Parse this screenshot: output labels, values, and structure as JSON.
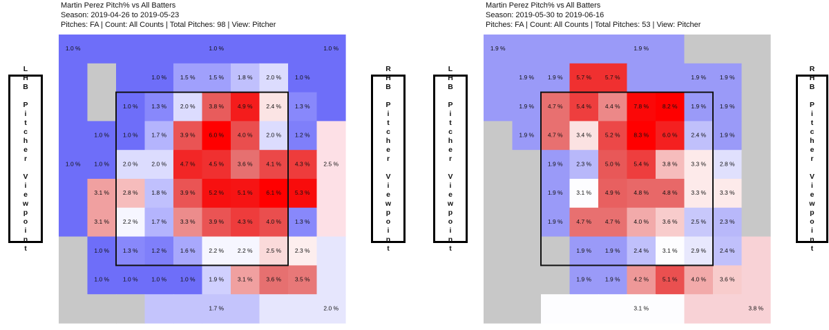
{
  "chart_data": [
    {
      "type": "heatmap",
      "title": "Martin Perez Pitch% vs All Batters",
      "subtitle": "Season: 2019-04-26 to 2019-05-23",
      "details": "Pitches: FA | Count: All Counts | Total Pitches: 98 | View: Pitcher",
      "left_label": "LHB Pitcher Viewpoint",
      "right_label": "RHB Pitcher Viewpoint",
      "values": [
        [
          1.0,
          null,
          null,
          null,
          null,
          1.0,
          null,
          null,
          null,
          1.0
        ],
        [
          null,
          null,
          null,
          1.0,
          1.5,
          1.5,
          1.8,
          2.0,
          1.0,
          null
        ],
        [
          null,
          null,
          1.0,
          1.3,
          2.0,
          3.8,
          4.9,
          2.4,
          1.3,
          null
        ],
        [
          null,
          1.0,
          1.0,
          1.7,
          3.9,
          6.0,
          4.0,
          2.0,
          1.2,
          null
        ],
        [
          1.0,
          1.0,
          2.0,
          2.0,
          4.7,
          4.5,
          3.6,
          4.1,
          4.3,
          2.5
        ],
        [
          null,
          3.1,
          2.8,
          1.8,
          3.9,
          5.2,
          5.1,
          6.1,
          5.3,
          null
        ],
        [
          null,
          3.1,
          2.2,
          1.7,
          3.3,
          3.9,
          4.3,
          4.0,
          1.3,
          null
        ],
        [
          null,
          1.0,
          1.3,
          1.2,
          1.6,
          2.2,
          2.2,
          2.5,
          2.3,
          null
        ],
        [
          null,
          1.0,
          1.0,
          1.0,
          1.0,
          1.9,
          3.1,
          3.6,
          3.5,
          null
        ],
        [
          null,
          null,
          null,
          null,
          null,
          1.7,
          null,
          null,
          null,
          2.0
        ]
      ],
      "value_labels": [
        [
          "1.0 %",
          null,
          null,
          null,
          null,
          "1.0 %",
          null,
          null,
          null,
          "1.0 %"
        ],
        [
          null,
          null,
          null,
          "1.0 %",
          "1.5 %",
          "1.5 %",
          "1.8 %",
          "2.0 %",
          "1.0 %",
          null
        ],
        [
          null,
          null,
          "1.0 %",
          "1.3 %",
          "2.0 %",
          "3.8 %",
          "4.9 %",
          "2.4 %",
          "1.3 %",
          null
        ],
        [
          null,
          "1.0 %",
          "1.0 %",
          "1.7 %",
          "3.9 %",
          "6.0 %",
          "4.0 %",
          "2.0 %",
          "1.2 %",
          null
        ],
        [
          "1.0 %",
          "1.0 %",
          "2.0 %",
          "2.0 %",
          "4.7 %",
          "4.5 %",
          "3.6 %",
          "4.1 %",
          "4.3 %",
          "2.5 %"
        ],
        [
          null,
          "3.1 %",
          "2.8 %",
          "1.8 %",
          "3.9 %",
          "5.2 %",
          "5.1 %",
          "6.1 %",
          "5.3 %",
          null
        ],
        [
          null,
          "3.1 %",
          "2.2 %",
          "1.7 %",
          "3.3 %",
          "3.9 %",
          "4.3 %",
          "4.0 %",
          "1.3 %",
          null
        ],
        [
          null,
          "1.0 %",
          "1.3 %",
          "1.2 %",
          "1.6 %",
          "2.2 %",
          "2.2 %",
          "2.5 %",
          "2.3 %",
          null
        ],
        [
          null,
          "1.0 %",
          "1.0 %",
          "1.0 %",
          "1.0 %",
          "1.9 %",
          "3.1 %",
          "3.6 %",
          "3.5 %",
          null
        ],
        [
          null,
          null,
          null,
          null,
          null,
          "1.7 %",
          null,
          null,
          null,
          "2.0 %"
        ]
      ],
      "colors": [
        [
          "#6e6ef9",
          "#6e6ef9",
          "#6e6ef9",
          "#6e6ef9",
          "#6e6ef9",
          "#6e6ef9",
          "#6e6ef9",
          "#6e6ef9",
          "#6e6ef9",
          "#6e6ef9"
        ],
        [
          "#6e6ef9",
          "#c8c8c8",
          "#6e6ef9",
          "#6e6ef9",
          "#a0a0fc",
          "#a0a0fc",
          "#c0c0fd",
          "#dcdcfe",
          "#6e6ef9",
          "#6e6ef9"
        ],
        [
          "#6e6ef9",
          "#c8c8c8",
          "#6e6ef9",
          "#8888fb",
          "#dcdcfe",
          "#e85c5c",
          "#f41c1c",
          "#fbe4e4",
          "#8888fb",
          "#6e6ef9"
        ],
        [
          "#6e6ef9",
          "#6e6ef9",
          "#6e6ef9",
          "#b4b4fd",
          "#ea5454",
          "#ff0000",
          "#ea4e4e",
          "#dcdcfe",
          "#7f7ffa",
          "#fde0e6"
        ],
        [
          "#6e6ef9",
          "#6e6ef9",
          "#dcdcfe",
          "#dcdcfe",
          "#f22626",
          "#f03030",
          "#e67070",
          "#eb4848",
          "#ee3c3c",
          "#fde0e6"
        ],
        [
          "#6e6ef9",
          "#f0a0a0",
          "#f6bcbc",
          "#c0c0fd",
          "#ea5454",
          "#f71010",
          "#f61414",
          "#ff0000",
          "#f80c0c",
          "#fde0e6"
        ],
        [
          "#6e6ef9",
          "#f0a0a0",
          "#f6f6ff",
          "#b4b4fd",
          "#ec8c8c",
          "#ea5454",
          "#ee3c3c",
          "#ea4e4e",
          "#8888fb",
          "#fde0e6"
        ],
        [
          "#c8c8c8",
          "#6e6ef9",
          "#8888fb",
          "#7f7ffa",
          "#a8a8fc",
          "#f6f6ff",
          "#f6f6ff",
          "#fadada",
          "#fdeeee",
          "#e6e6fd"
        ],
        [
          "#c8c8c8",
          "#6e6ef9",
          "#6e6ef9",
          "#6e6ef9",
          "#6e6ef9",
          "#d0d0fe",
          "#f0a0a0",
          "#e67070",
          "#e87878",
          "#e6e6fd"
        ],
        [
          "#c8c8c8",
          "#c8c8c8",
          "#c8c8c8",
          "#c4c4fc",
          "#c4c4fc",
          "#c4c4fc",
          "#c4c4fc",
          "#e6e6fd",
          "#e6e6fd",
          "#e6e6fd"
        ]
      ]
    },
    {
      "type": "heatmap",
      "title": "Martin Perez Pitch% vs All Batters",
      "subtitle": "Season: 2019-05-30 to 2019-06-16",
      "details": "Pitches: FA | Count: All Counts | Total Pitches: 53 | View: Pitcher",
      "left_label": "LHB Pitcher Viewpoint",
      "right_label": "RHB Pitcher Viewpoint",
      "values": [
        [
          1.9,
          null,
          null,
          null,
          null,
          1.9,
          null,
          null,
          null,
          null
        ],
        [
          null,
          1.9,
          1.9,
          5.7,
          5.7,
          null,
          null,
          1.9,
          1.9,
          null
        ],
        [
          null,
          1.9,
          4.7,
          5.4,
          4.4,
          7.8,
          8.2,
          1.9,
          1.9,
          null
        ],
        [
          null,
          1.9,
          4.7,
          3.4,
          5.2,
          8.3,
          6.0,
          2.4,
          1.9,
          null
        ],
        [
          null,
          null,
          1.9,
          2.3,
          5.0,
          5.4,
          3.8,
          3.3,
          2.8,
          null
        ],
        [
          null,
          null,
          1.9,
          3.1,
          4.9,
          4.8,
          4.8,
          3.3,
          3.3,
          null
        ],
        [
          null,
          null,
          1.9,
          4.7,
          4.7,
          4.0,
          3.6,
          2.5,
          2.3,
          null
        ],
        [
          null,
          null,
          null,
          1.9,
          1.9,
          2.4,
          3.1,
          2.9,
          2.4,
          null
        ],
        [
          null,
          null,
          null,
          1.9,
          1.9,
          4.2,
          5.1,
          4.0,
          3.6,
          null
        ],
        [
          null,
          null,
          null,
          null,
          null,
          3.1,
          null,
          null,
          null,
          3.8
        ]
      ],
      "value_labels": [
        [
          "1.9 %",
          null,
          null,
          null,
          null,
          "1.9 %",
          null,
          null,
          null,
          null
        ],
        [
          null,
          "1.9 %",
          "1.9 %",
          "5.7 %",
          "5.7 %",
          null,
          null,
          "1.9 %",
          "1.9 %",
          null
        ],
        [
          null,
          "1.9 %",
          "4.7 %",
          "5.4 %",
          "4.4 %",
          "7.8 %",
          "8.2 %",
          "1.9 %",
          "1.9 %",
          null
        ],
        [
          null,
          "1.9 %",
          "4.7 %",
          "3.4 %",
          "5.2 %",
          "8.3 %",
          "6.0 %",
          "2.4 %",
          "1.9 %",
          null
        ],
        [
          null,
          null,
          "1.9 %",
          "2.3 %",
          "5.0 %",
          "5.4 %",
          "3.8 %",
          "3.3 %",
          "2.8 %",
          null
        ],
        [
          null,
          null,
          "1.9 %",
          "3.1 %",
          "4.9 %",
          "4.8 %",
          "4.8 %",
          "3.3 %",
          "3.3 %",
          null
        ],
        [
          null,
          null,
          "1.9 %",
          "4.7 %",
          "4.7 %",
          "4.0 %",
          "3.6 %",
          "2.5 %",
          "2.3 %",
          null
        ],
        [
          null,
          null,
          null,
          "1.9 %",
          "1.9 %",
          "2.4 %",
          "3.1 %",
          "2.9 %",
          "2.4 %",
          null
        ],
        [
          null,
          null,
          null,
          "1.9 %",
          "1.9 %",
          "4.2 %",
          "5.1 %",
          "4.0 %",
          "3.6 %",
          null
        ],
        [
          null,
          null,
          null,
          null,
          null,
          "3.1 %",
          null,
          null,
          null,
          "3.8 %"
        ]
      ],
      "colors": [
        [
          "#9a9af8",
          "#9a9af8",
          "#9a9af8",
          "#9a9af8",
          "#9a9af8",
          "#9a9af8",
          "#9a9af8",
          "#c8c8c8",
          "#c8c8c8",
          "#c8c8c8"
        ],
        [
          "#9a9af8",
          "#9a9af8",
          "#9a9af8",
          "#f03030",
          "#f03030",
          "#9a9af8",
          "#9a9af8",
          "#9a9af8",
          "#9a9af8",
          "#c8c8c8"
        ],
        [
          "#9a9af8",
          "#9a9af8",
          "#e87070",
          "#ee3e3e",
          "#ec8888",
          "#fb0808",
          "#fe0000",
          "#9a9af8",
          "#9a9af8",
          "#c8c8c8"
        ],
        [
          "#c8c8c8",
          "#9a9af8",
          "#e87070",
          "#fbe2e2",
          "#ec4848",
          "#ff0000",
          "#f42020",
          "#c0c0fb",
          "#9a9af8",
          "#c8c8c8"
        ],
        [
          "#c8c8c8",
          "#c8c8c8",
          "#9a9af8",
          "#b8b8fa",
          "#e85858",
          "#ee3e3e",
          "#f6bcbc",
          "#fdeaea",
          "#e0e0fd",
          "#c8c8c8"
        ],
        [
          "#c8c8c8",
          "#c8c8c8",
          "#9a9af8",
          "#fdfdff",
          "#e86060",
          "#e86868",
          "#e86868",
          "#fdeaea",
          "#fdeaea",
          "#c8c8c8"
        ],
        [
          "#c8c8c8",
          "#c8c8c8",
          "#9a9af8",
          "#e87070",
          "#e87070",
          "#f2aaaa",
          "#f8cccc",
          "#c8c8fb",
          "#b8b8fa",
          "#c8c8c8"
        ],
        [
          "#c8c8c8",
          "#c8c8c8",
          "#c8c8c8",
          "#9a9af8",
          "#9a9af8",
          "#c0c0fb",
          "#fdfdff",
          "#e8e8fd",
          "#c0c0fb",
          "#f8d2d6"
        ],
        [
          "#c8c8c8",
          "#c8c8c8",
          "#c8c8c8",
          "#9a9af8",
          "#9a9af8",
          "#ee9898",
          "#ea5050",
          "#f2aaaa",
          "#f8cccc",
          "#f8d2d6"
        ],
        [
          "#c8c8c8",
          "#c8c8c8",
          "#fdfdff",
          "#fdfdff",
          "#fdfdff",
          "#fdfdff",
          "#fdfdff",
          "#f8d2d6",
          "#f8d2d6",
          "#f8d2d6"
        ]
      ]
    }
  ]
}
